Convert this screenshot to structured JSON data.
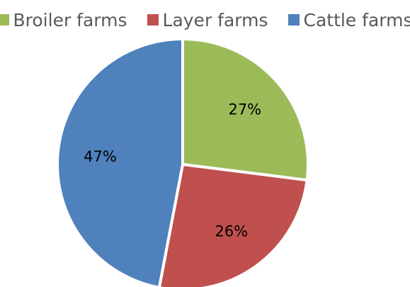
{
  "chart_data": {
    "type": "pie",
    "title": "",
    "categories": [
      "Broiler farms",
      "Layer farms",
      "Cattle farms"
    ],
    "values": [
      27,
      26,
      47
    ],
    "labels": [
      "27%",
      "26%",
      "47%"
    ],
    "colors": [
      "#9BBB59",
      "#C0504D",
      "#4F81BD"
    ],
    "legend_position": "top",
    "start_angle": "12 o'clock",
    "direction": "clockwise"
  }
}
